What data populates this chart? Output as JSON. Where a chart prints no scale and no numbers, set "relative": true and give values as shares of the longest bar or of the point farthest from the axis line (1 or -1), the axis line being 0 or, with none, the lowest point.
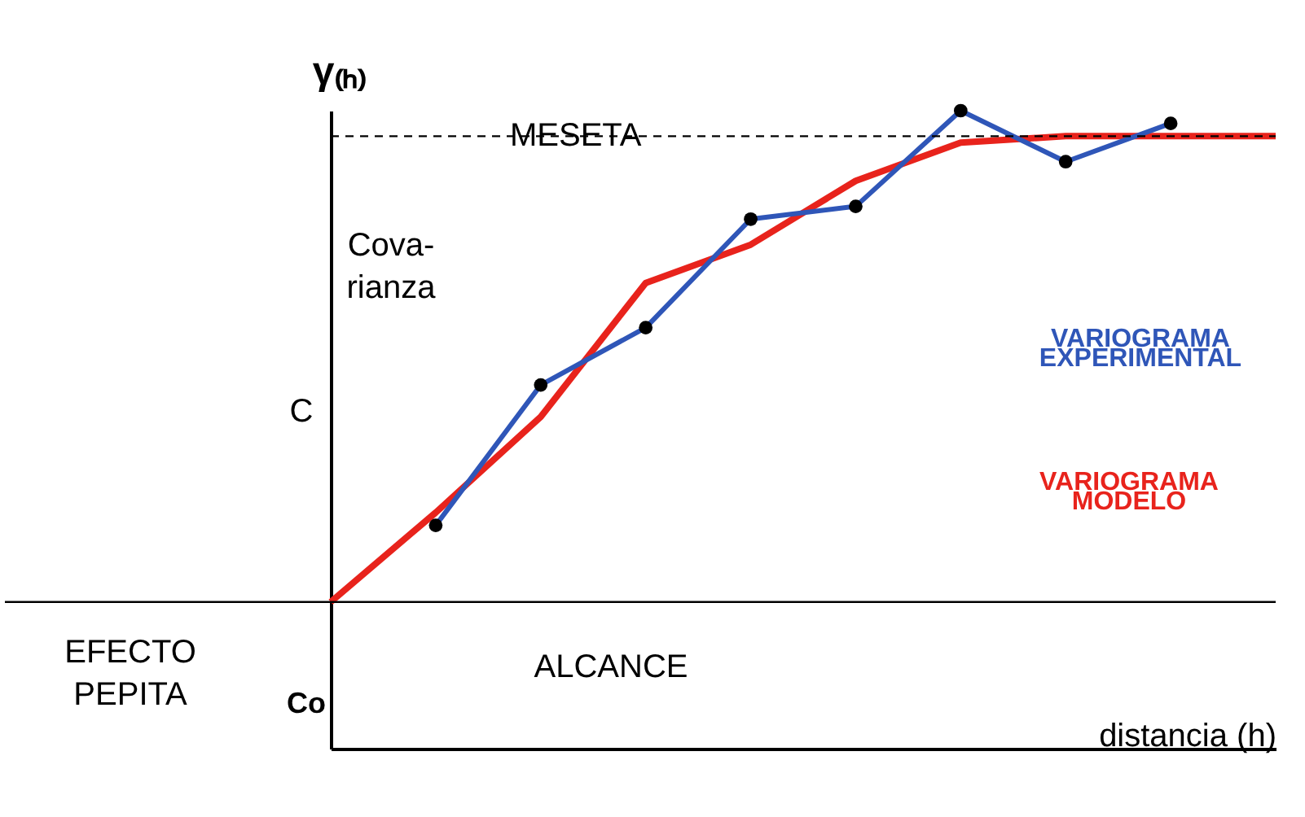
{
  "chart_data": {
    "type": "line",
    "relative": true,
    "xlabel": "distancia (h)",
    "ylabel": "γ₍ₕ₎",
    "categories": [
      null,
      null,
      null,
      null,
      null,
      null,
      null,
      null,
      null,
      null
    ],
    "series": [
      {
        "name": "VARIOGRAMA MODELO",
        "color": "#e8231c",
        "marker": "none",
        "values": [
          0.23,
          0.37,
          0.52,
          0.73,
          0.79,
          0.89,
          0.95,
          0.96,
          0.96,
          0.96
        ]
      },
      {
        "name": "VARIOGRAMA EXPERIMENTAL",
        "color": "#2f56b8",
        "marker": "circle",
        "values": [
          null,
          0.35,
          0.57,
          0.66,
          0.83,
          0.85,
          1.0,
          0.92,
          0.98,
          null
        ]
      }
    ],
    "ref_lines": [
      {
        "axis": "y",
        "value": 0.96,
        "label": "MESETA",
        "line_style": "dashed",
        "color": "#000000"
      },
      {
        "axis": "y",
        "value": 0.23,
        "label": null,
        "line_style": "solid",
        "color": "#000000"
      }
    ],
    "annotations": [
      "Cova-\nrianza",
      "C",
      "EFECTO\nPEPITA",
      "Co",
      "ALCANCE"
    ],
    "legend": false,
    "grid": false,
    "line_style": "solid"
  }
}
